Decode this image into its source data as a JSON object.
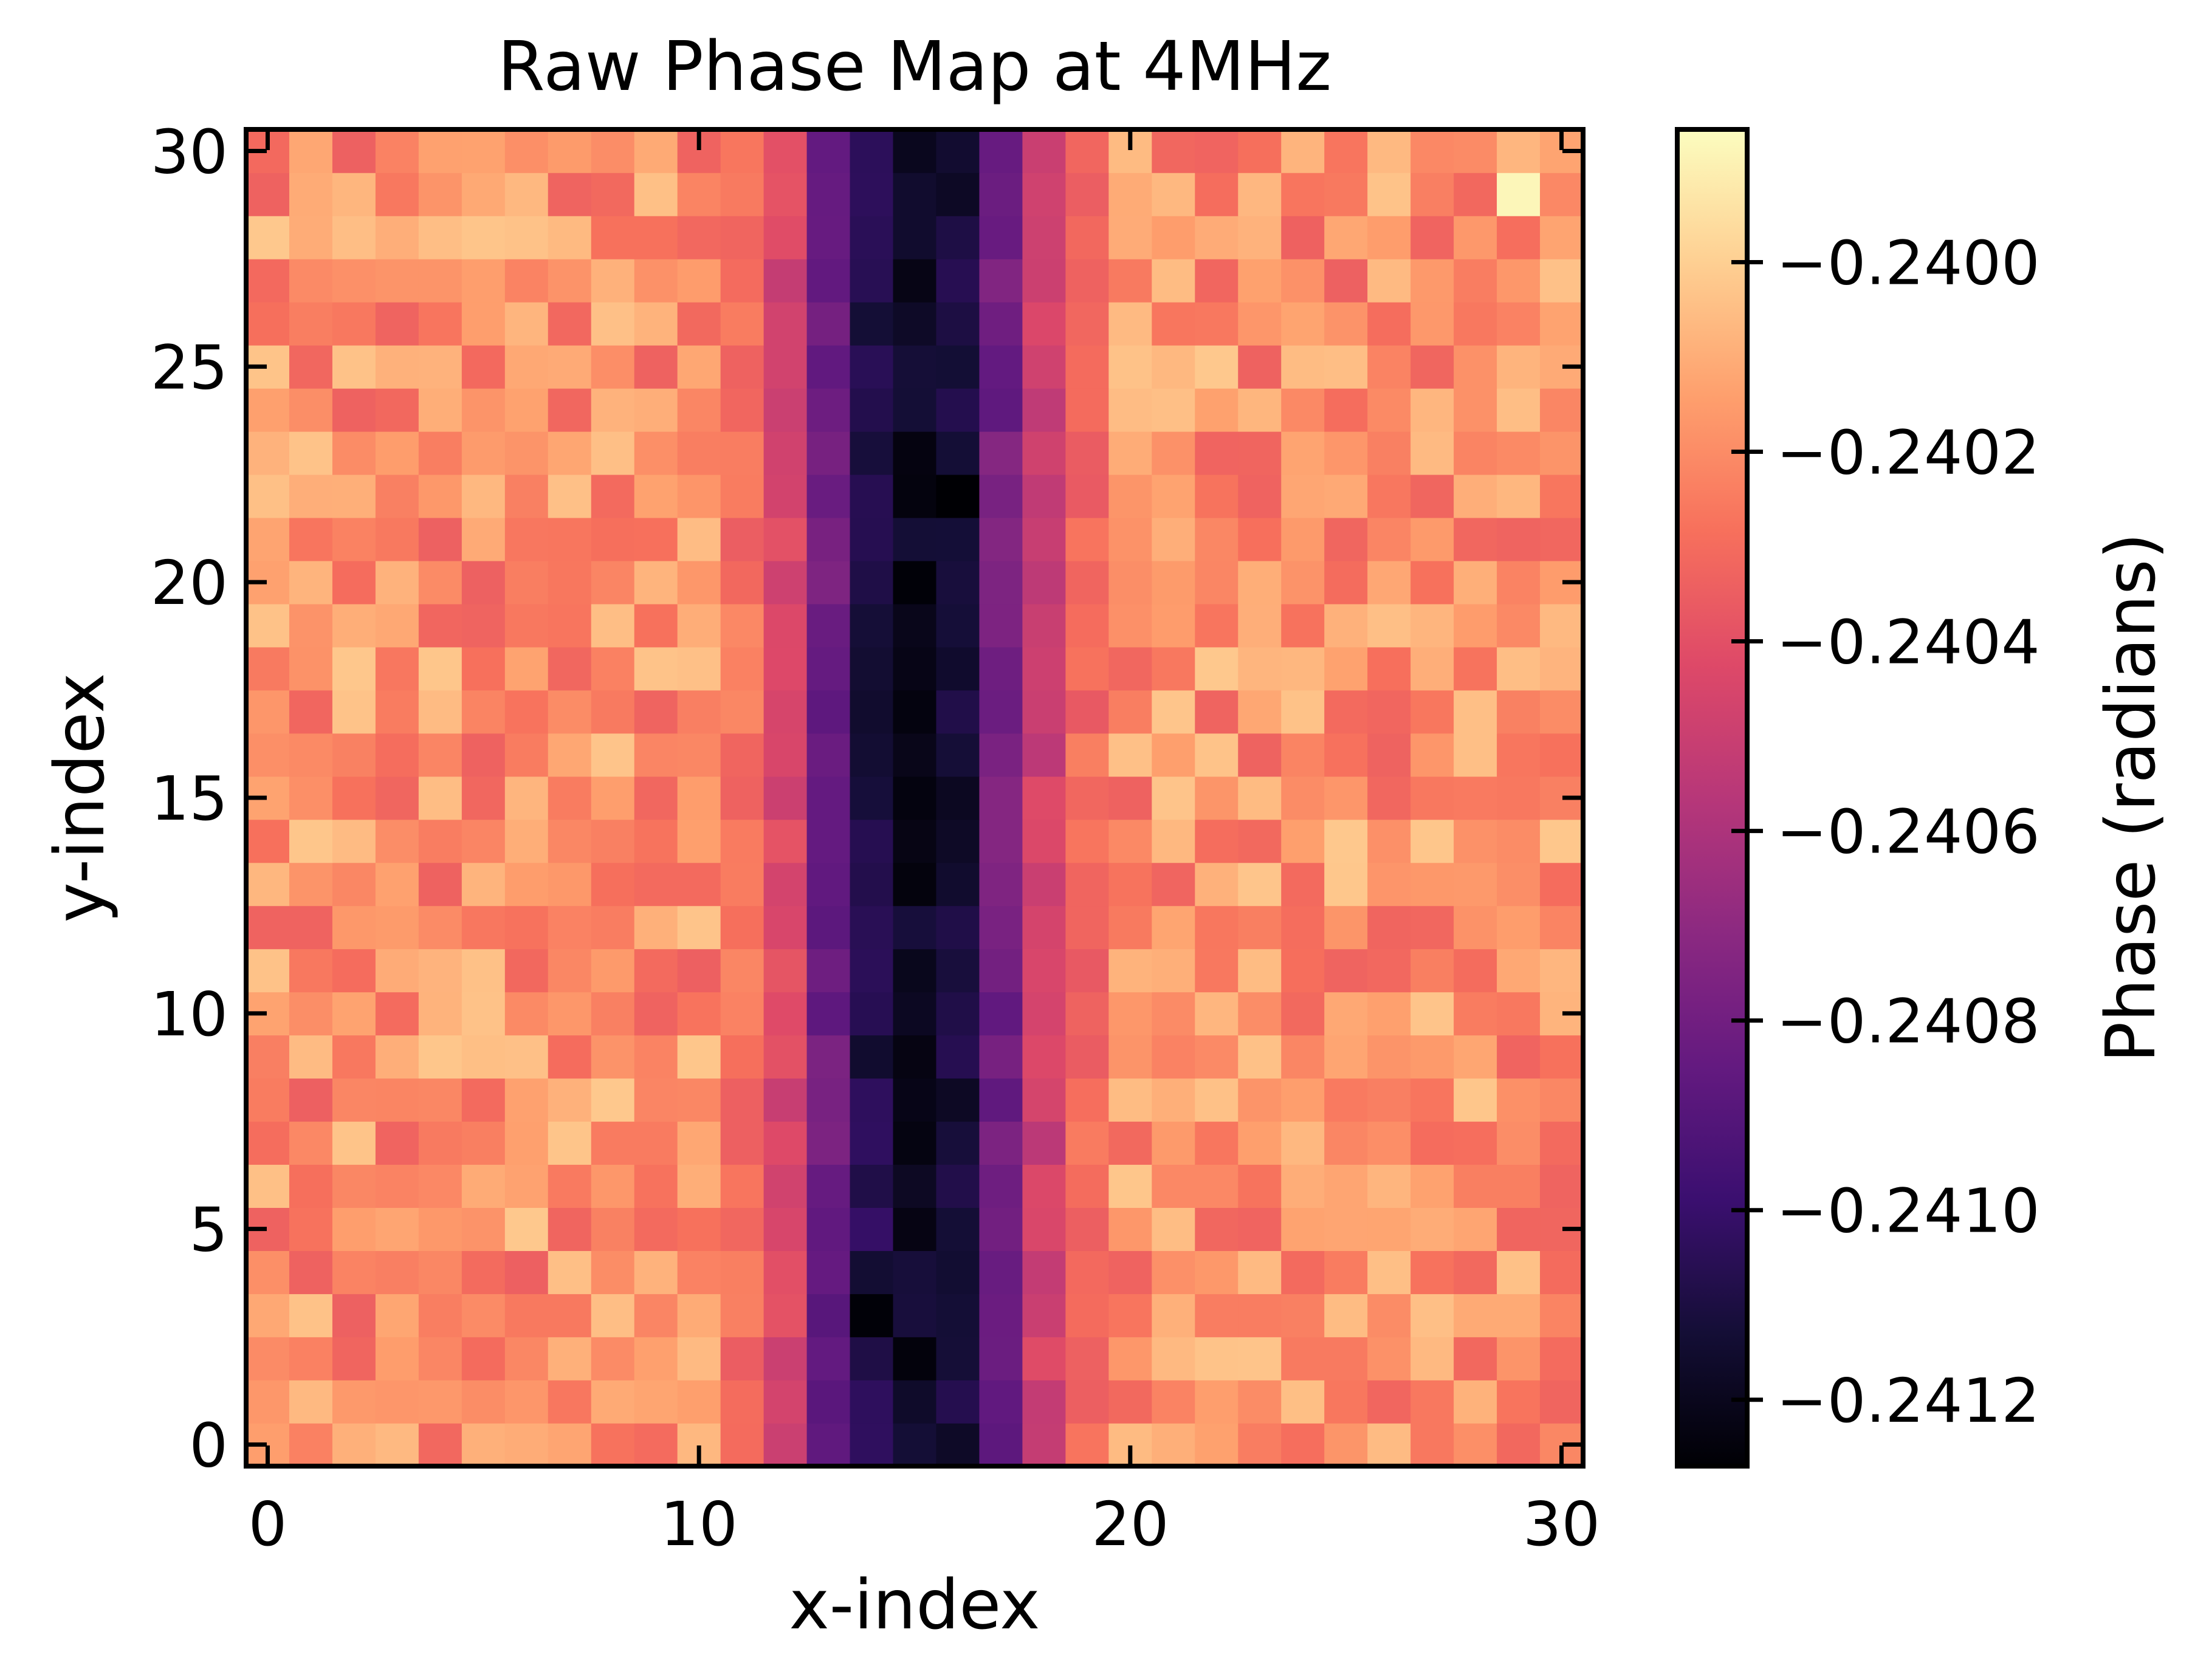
{
  "chart_data": {
    "type": "heatmap",
    "title": "Raw Phase Map at 4MHz",
    "xlabel": "x-index",
    "ylabel": "y-index",
    "colorbar_label": "Phase (radians)",
    "colormap": "magma",
    "xlim": [
      -0.5,
      30.5
    ],
    "ylim": [
      -0.5,
      30.5
    ],
    "x_ticks": [
      0,
      10,
      20,
      30
    ],
    "y_ticks": [
      0,
      5,
      10,
      15,
      20,
      25,
      30
    ],
    "x_tick_labels": [
      "0",
      "10",
      "20",
      "30"
    ],
    "y_tick_labels": [
      "0",
      "5",
      "10",
      "15",
      "20",
      "25",
      "30"
    ],
    "value_range": [
      -0.24127,
      -0.23986
    ],
    "colorbar_ticks": [
      -0.2412,
      -0.241,
      -0.2408,
      -0.2406,
      -0.2404,
      -0.2402,
      -0.24
    ],
    "colorbar_tick_labels": [
      "−0.2412",
      "−0.2410",
      "−0.2408",
      "−0.2406",
      "−0.2404",
      "−0.2402",
      "−0.2400"
    ],
    "grid_size": [
      31,
      31
    ],
    "band_profile": {
      "columns": [
        11,
        12,
        13,
        14,
        15,
        16,
        17,
        18,
        19
      ],
      "mean_values": [
        -0.24028,
        -0.24045,
        -0.24082,
        -0.24108,
        -0.24118,
        -0.24112,
        -0.2408,
        -0.24048,
        -0.2403
      ]
    },
    "background_mean": -0.24018,
    "background_spread": 0.00016,
    "highlights": [
      {
        "x": 29,
        "y": 29,
        "value": -0.23988
      },
      {
        "x": 16,
        "y": 22,
        "value": -0.24127
      },
      {
        "x": 15,
        "y": 20,
        "value": -0.24126
      },
      {
        "x": 14,
        "y": 3,
        "value": -0.24126
      }
    ]
  }
}
